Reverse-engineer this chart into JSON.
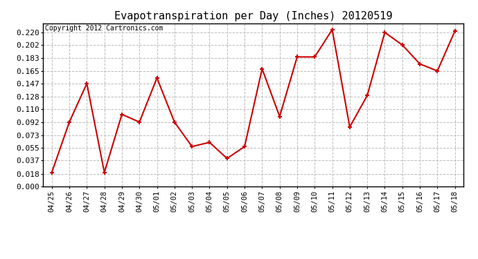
{
  "title": "Evapotranspiration per Day (Inches) 20120519",
  "copyright_text": "Copyright 2012 Cartronics.com",
  "x_labels": [
    "04/25",
    "04/26",
    "04/27",
    "04/28",
    "04/29",
    "04/30",
    "05/01",
    "05/02",
    "05/03",
    "05/04",
    "05/05",
    "05/06",
    "05/07",
    "05/08",
    "05/09",
    "05/10",
    "05/11",
    "05/12",
    "05/13",
    "05/14",
    "05/15",
    "05/16",
    "05/17",
    "05/18"
  ],
  "y_values": [
    0.02,
    0.092,
    0.147,
    0.02,
    0.103,
    0.092,
    0.155,
    0.092,
    0.057,
    0.063,
    0.04,
    0.057,
    0.168,
    0.1,
    0.185,
    0.185,
    0.224,
    0.085,
    0.13,
    0.22,
    0.202,
    0.175,
    0.165,
    0.222
  ],
  "line_color": "#cc0000",
  "marker": "+",
  "marker_size": 5,
  "marker_linewidth": 1.5,
  "line_width": 1.5,
  "background_color": "#ffffff",
  "grid_color": "#bbbbbb",
  "grid_linestyle": "--",
  "grid_linewidth": 0.7,
  "yticks": [
    0.0,
    0.018,
    0.037,
    0.055,
    0.073,
    0.092,
    0.11,
    0.128,
    0.147,
    0.165,
    0.183,
    0.202,
    0.22
  ],
  "ylim": [
    0.0,
    0.233
  ],
  "title_fontsize": 11,
  "copyright_fontsize": 7,
  "tick_fontsize": 7.5,
  "ytick_fontsize": 8,
  "border_color": "#000000",
  "title_font": "monospace",
  "tick_font": "monospace"
}
